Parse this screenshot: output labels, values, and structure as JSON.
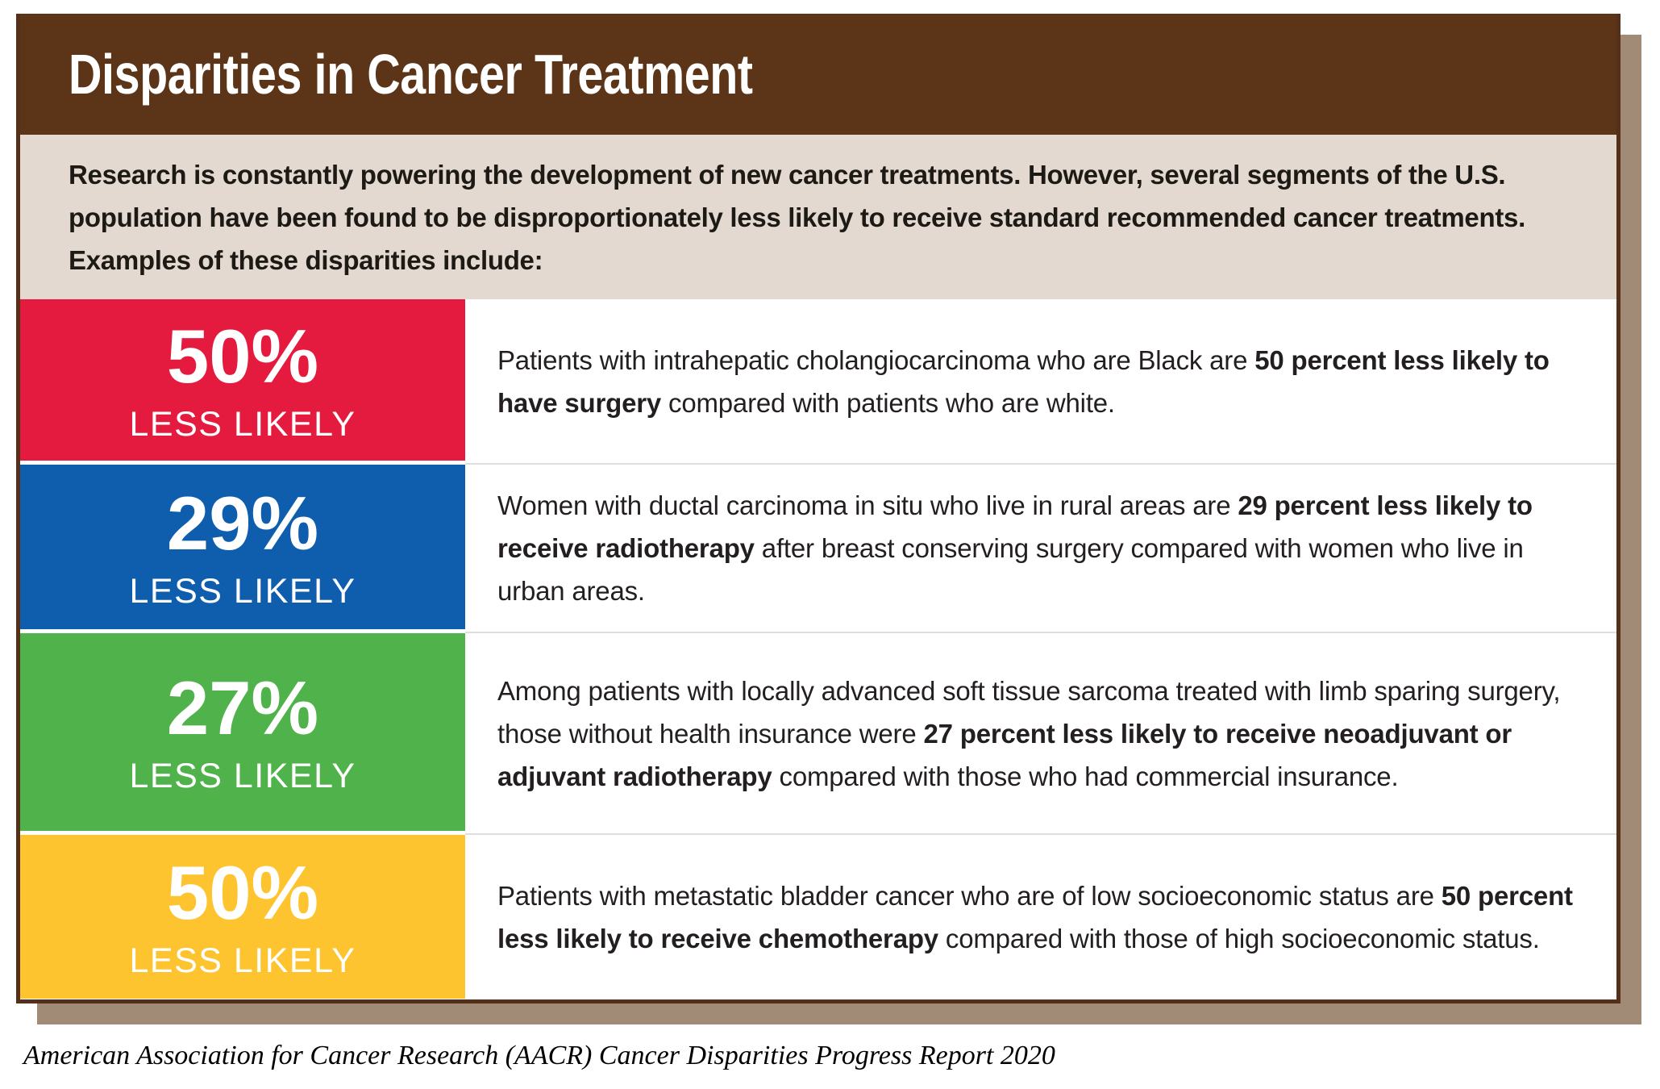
{
  "header": {
    "title": "Disparities in Cancer Treatment"
  },
  "intro": {
    "text": "Research is constantly powering the development of new cancer treatments. However, several segments of the U.S. population have been found to be disproportionately less likely to receive standard recommended cancer treatments. Examples of these disparities include:"
  },
  "rows": [
    {
      "percent": "50%",
      "label": "LESS LIKELY",
      "color": "#E41B3F",
      "segments": [
        {
          "text": "Patients with intrahepatic cholangiocarcinoma who are Black are ",
          "bold": false
        },
        {
          "text": "50 percent less likely to have surgery",
          "bold": true
        },
        {
          "text": " compared with patients who are white.",
          "bold": false
        }
      ]
    },
    {
      "percent": "29%",
      "label": "LESS LIKELY",
      "color": "#0E5EAD",
      "segments": [
        {
          "text": "Women with ductal carcinoma in situ who live in rural areas are ",
          "bold": false
        },
        {
          "text": "29 percent less likely to receive radiotherapy",
          "bold": true
        },
        {
          "text": " after breast conserving surgery compared with women who live in urban areas.",
          "bold": false
        }
      ]
    },
    {
      "percent": "27%",
      "label": "LESS LIKELY",
      "color": "#4FB24A",
      "segments": [
        {
          "text": "Among patients with locally advanced soft tissue sarcoma treated with limb sparing surgery, those without health insurance were ",
          "bold": false
        },
        {
          "text": "27 percent less likely to receive neoadjuvant or adjuvant radiotherapy",
          "bold": true
        },
        {
          "text": " compared with those who had commercial insurance.",
          "bold": false
        }
      ]
    },
    {
      "percent": "50%",
      "label": "LESS LIKELY",
      "color": "#FDC42F",
      "segments": [
        {
          "text": "Patients with metastatic bladder cancer who are of low socioeconomic status are ",
          "bold": false
        },
        {
          "text": "50 percent less likely to receive chemotherapy",
          "bold": true
        },
        {
          "text": " compared with those of high socioeconomic status.",
          "bold": false
        }
      ]
    }
  ],
  "footer": {
    "citation": "American Association for Cancer Research (AACR) Cancer Disparities Progress Report 2020"
  },
  "palette": {
    "header_bg": "#5C3417",
    "intro_bg": "#E3D9D0",
    "card_border": "#54301A",
    "shadow": "#A28B76",
    "divider": "#DEDEDE",
    "body_text": "#231F20",
    "title_text": "#FFFFFF",
    "badge_text": "#FFFFFF",
    "page_bg": "#FFFFFF"
  },
  "chart_data": {
    "type": "table",
    "title": "Disparities in Cancer Treatment",
    "categories": [
      "Black patients with intrahepatic cholangiocarcinoma — surgery",
      "Women with ductal carcinoma in situ in rural areas — radiotherapy after breast conserving surgery",
      "Patients without health insurance with locally advanced soft tissue sarcoma — neoadjuvant or adjuvant radiotherapy",
      "Patients with metastatic bladder cancer of low socioeconomic status — chemotherapy"
    ],
    "values": [
      50,
      29,
      27,
      50
    ],
    "unit": "percent less likely"
  }
}
